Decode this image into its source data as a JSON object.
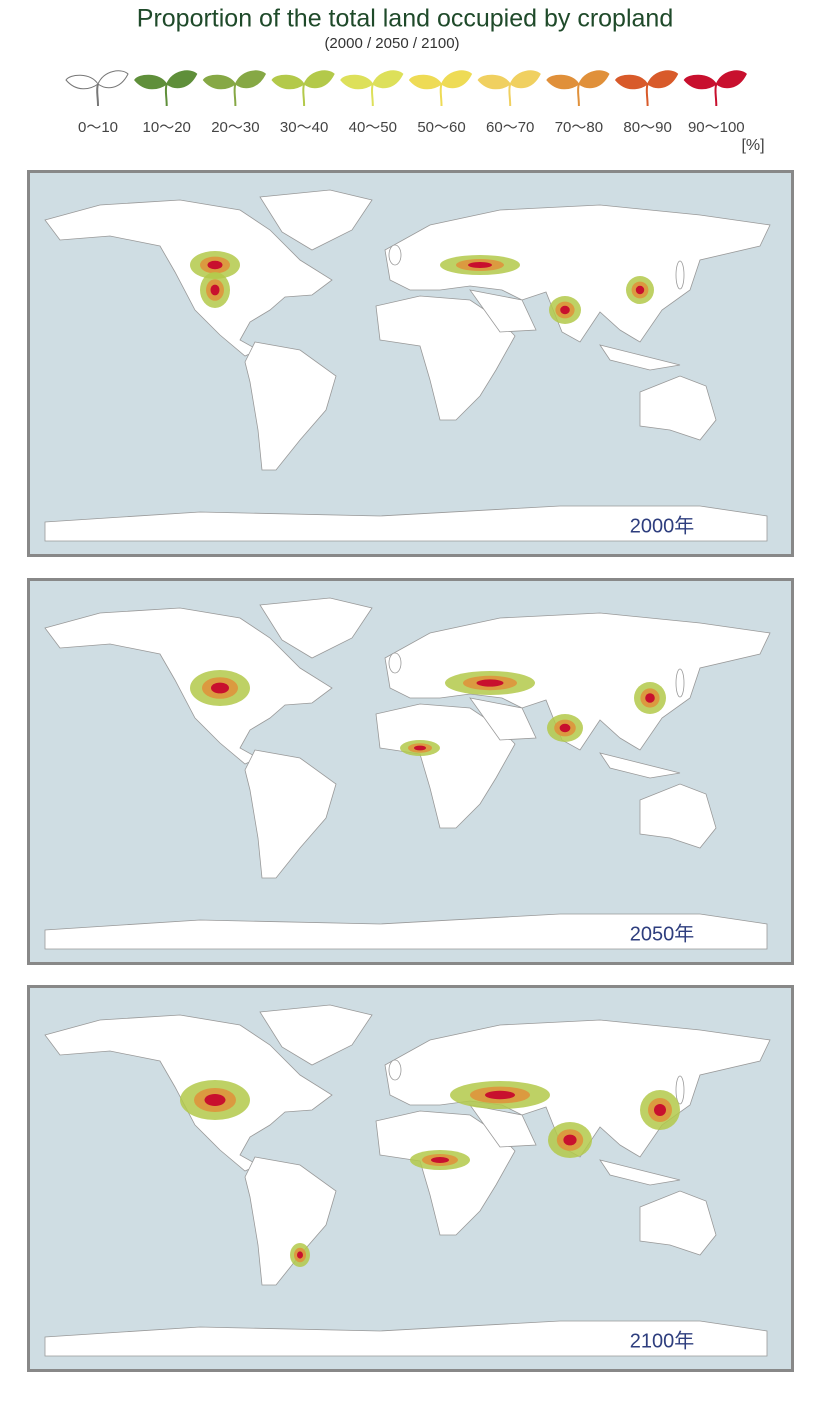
{
  "title": "Proportion of the total land occupied by cropland",
  "subtitle": "(2000 / 2050 / 2100)",
  "legend": {
    "items": [
      {
        "label": "0〜10",
        "color": "#ffffff"
      },
      {
        "label": "10〜20",
        "color": "#5f8f3a"
      },
      {
        "label": "20〜30",
        "color": "#86a845"
      },
      {
        "label": "30〜40",
        "color": "#b3c94a"
      },
      {
        "label": "40〜50",
        "color": "#dde05a"
      },
      {
        "label": "50〜60",
        "color": "#eedb55"
      },
      {
        "label": "60〜70",
        "color": "#f0d060"
      },
      {
        "label": "70〜80",
        "color": "#e0903a"
      },
      {
        "label": "80〜90",
        "color": "#d85a2a"
      },
      {
        "label": "90〜100",
        "color": "#c8102e"
      }
    ],
    "unit": "[%]"
  },
  "maps": [
    {
      "label": "2000年"
    },
    {
      "label": "2050年"
    },
    {
      "label": "2100年"
    }
  ]
}
